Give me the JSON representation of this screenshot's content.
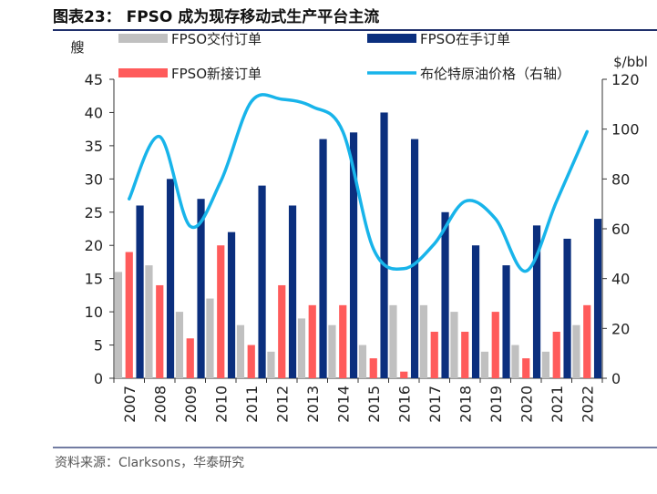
{
  "figure": {
    "title": "图表23： FPSO 成为现存移动式生产平台主流",
    "source": "资料来源：Clarksons，华泰研究"
  },
  "colors": {
    "title_rule": "#1f2f6b",
    "delivered": "#c0c0c0",
    "new_orders": "#ff5b5b",
    "orderbook": "#0b2f7e",
    "oil_price": "#18b4ea",
    "axis": "#333333",
    "source_rule": "#1f2f6b"
  },
  "chart_data": {
    "type": "bar+line",
    "ylabel_left": "艘",
    "ylabel_right": "$/bbl",
    "ylim_left": [
      0,
      45
    ],
    "yticks_left": [
      0,
      5,
      10,
      15,
      20,
      25,
      30,
      35,
      40,
      45
    ],
    "ylim_right": [
      0,
      120
    ],
    "yticks_right": [
      0,
      20,
      40,
      60,
      80,
      100,
      120
    ],
    "categories": [
      "2007",
      "2008",
      "2009",
      "2010",
      "2011",
      "2012",
      "2013",
      "2014",
      "2015",
      "2016",
      "2017",
      "2018",
      "2019",
      "2020",
      "2021",
      "2022"
    ],
    "series": [
      {
        "name": "FPSO交付订单",
        "kind": "bar",
        "axis": "left",
        "color": "#c0c0c0",
        "values": [
          16,
          17,
          10,
          12,
          8,
          4,
          9,
          8,
          5,
          11,
          11,
          10,
          4,
          5,
          4,
          8
        ]
      },
      {
        "name": "FPSO新接订单",
        "kind": "bar",
        "axis": "left",
        "color": "#ff5b5b",
        "values": [
          19,
          14,
          6,
          20,
          5,
          14,
          11,
          11,
          3,
          1,
          7,
          7,
          10,
          3,
          7,
          11
        ]
      },
      {
        "name": "FPSO在手订单",
        "kind": "bar",
        "axis": "left",
        "color": "#0b2f7e",
        "values": [
          26,
          30,
          27,
          22,
          29,
          26,
          36,
          37,
          40,
          36,
          25,
          20,
          17,
          23,
          21,
          24
        ]
      },
      {
        "name": "布伦特原油价格（右轴）",
        "kind": "line",
        "axis": "right",
        "color": "#18b4ea",
        "values": [
          72,
          97,
          61,
          79,
          111,
          112,
          109,
          99,
          52,
          44,
          54,
          71,
          64,
          43,
          71,
          99
        ]
      }
    ],
    "legend": [
      {
        "label": "FPSO交付订单",
        "marker": "bar",
        "color": "#c0c0c0"
      },
      {
        "label": "FPSO在手订单",
        "marker": "bar",
        "color": "#0b2f7e"
      },
      {
        "label": "FPSO新接订单",
        "marker": "bar",
        "color": "#ff5b5b"
      },
      {
        "label": "布伦特原油价格（右轴）",
        "marker": "line",
        "color": "#18b4ea"
      }
    ],
    "legend_position": "top",
    "grid": false
  }
}
